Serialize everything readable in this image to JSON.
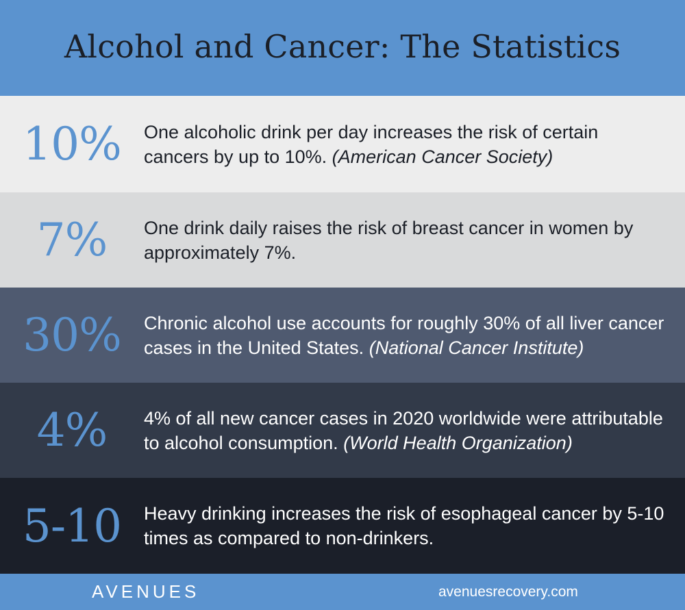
{
  "header": {
    "title": "Alcohol and Cancer: The Statistics"
  },
  "stats": [
    {
      "value": "10%",
      "text": "One alcoholic drink per day increases the risk of certain cancers by up to 10%.",
      "source": "(American Cancer Society)"
    },
    {
      "value": "7%",
      "text": "One drink daily raises the risk of breast cancer in women by approximately 7%.",
      "source": ""
    },
    {
      "value": "30%",
      "text": "Chronic alcohol use accounts for roughly 30% of all liver cancer cases in the United States.",
      "source": "(National Cancer Institute)"
    },
    {
      "value": "4%",
      "text": "4% of all new cancer cases in 2020 worldwide were attributable to alcohol consumption.",
      "source": "(World Health Organization)"
    },
    {
      "value": "5-10",
      "text": "Heavy drinking increases the risk of esophageal cancer by 5-10 times as compared to non-drinkers.",
      "source": ""
    }
  ],
  "footer": {
    "logo": "AVENUES",
    "url": "avenuesrecovery.com"
  },
  "colors": {
    "accent_blue": "#5b93cf",
    "row_bg": [
      "#ededed",
      "#d9dadb",
      "#4f5a70",
      "#323a49",
      "#1b1f29"
    ]
  }
}
